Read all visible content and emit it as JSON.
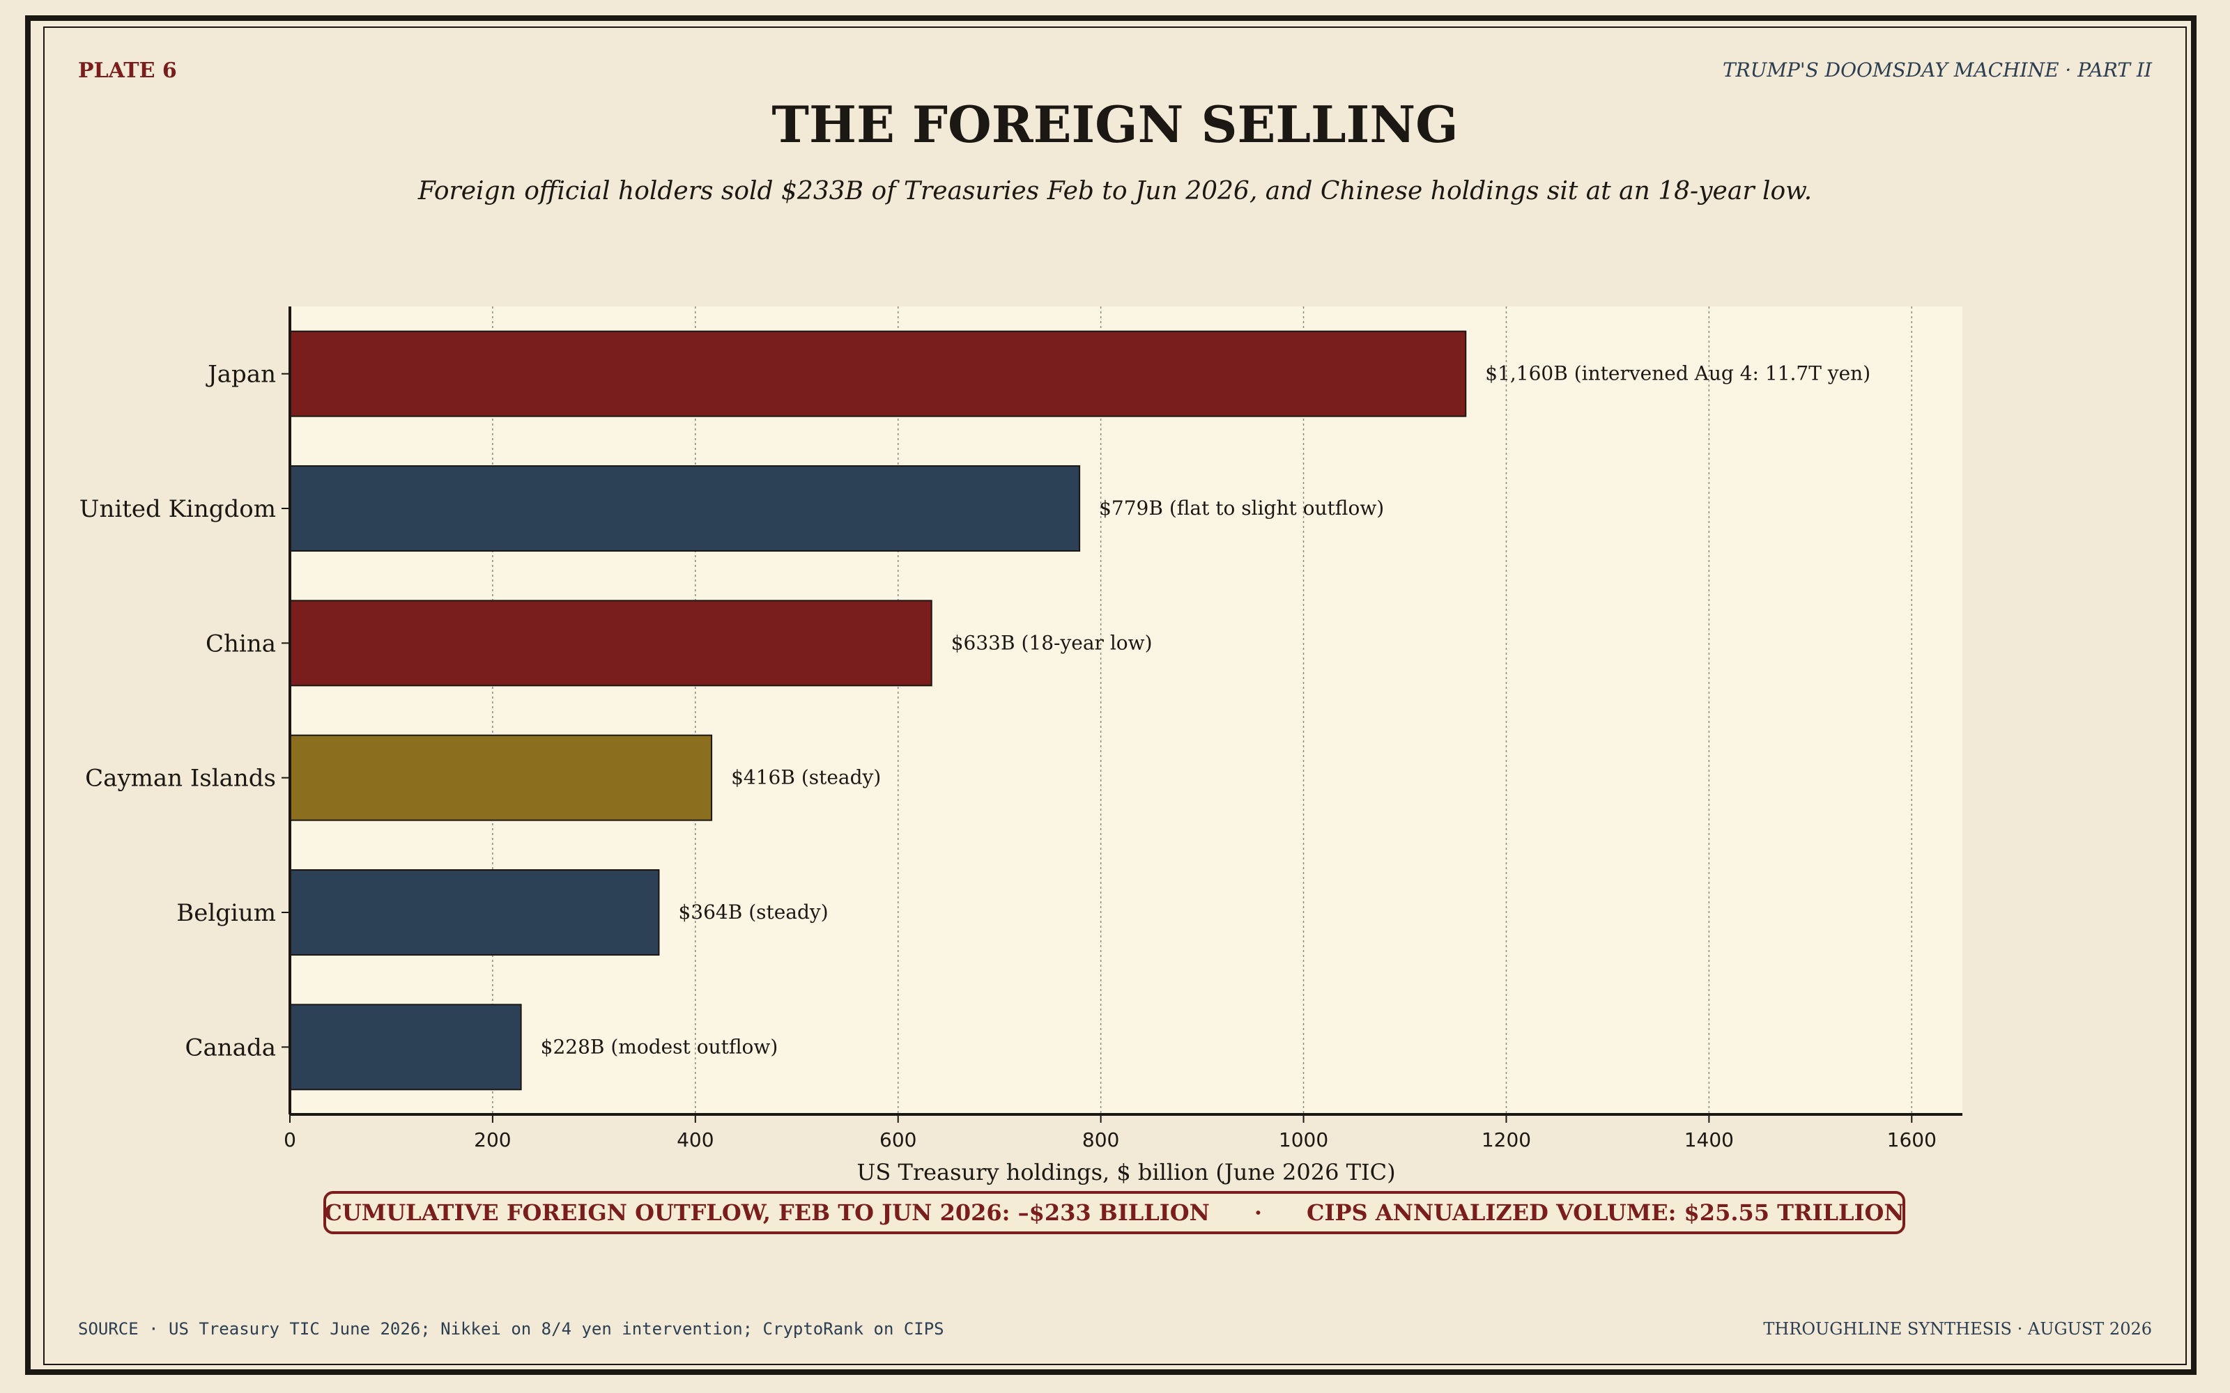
{
  "header": {
    "plate": "PLATE 6",
    "series": "TRUMP'S DOOMSDAY MACHINE  ·  PART II"
  },
  "title": "THE FOREIGN SELLING",
  "subtitle": "Foreign official holders sold $233B of Treasuries Feb to Jun 2026, and Chinese holdings sit at an 18-year low.",
  "colors": {
    "background": "#f2ead6",
    "plot_background": "#fbf5e4",
    "red": "#7a1d1d",
    "navy": "#2c4156",
    "gold": "#8b6f1e",
    "ink": "#1b1712"
  },
  "chart_data": {
    "type": "bar",
    "orientation": "horizontal",
    "categories": [
      "Japan",
      "United Kingdom",
      "China",
      "Cayman Islands",
      "Belgium",
      "Canada"
    ],
    "values": [
      1160,
      779,
      633,
      416,
      364,
      228
    ],
    "bar_colors": [
      "#7a1d1d",
      "#2c4156",
      "#7a1d1d",
      "#8b6f1e",
      "#2c4156",
      "#2c4156"
    ],
    "data_labels": [
      "$1,160B  (intervened Aug 4: 11.7T yen)",
      "$779B  (flat to slight outflow)",
      "$633B  (18-year low)",
      "$416B  (steady)",
      "$364B  (steady)",
      "$228B  (modest outflow)"
    ],
    "xlabel": "US Treasury holdings, $ billion (June 2026 TIC)",
    "xlim": [
      0,
      1650
    ],
    "xticks": [
      0,
      200,
      400,
      600,
      800,
      1000,
      1200,
      1400,
      1600
    ],
    "grid": "vertical dotted"
  },
  "banner": {
    "left": "CUMULATIVE FOREIGN OUTFLOW, FEB TO JUN 2026:  –$233 BILLION",
    "separator": "·",
    "right": "CIPS ANNUALIZED VOLUME:  $25.55 TRILLION"
  },
  "footer": {
    "source": "SOURCE  ·  US Treasury TIC June 2026; Nikkei on 8/4 yen intervention; CryptoRank on CIPS",
    "credit": "THROUGHLINE SYNTHESIS  ·  AUGUST 2026"
  }
}
